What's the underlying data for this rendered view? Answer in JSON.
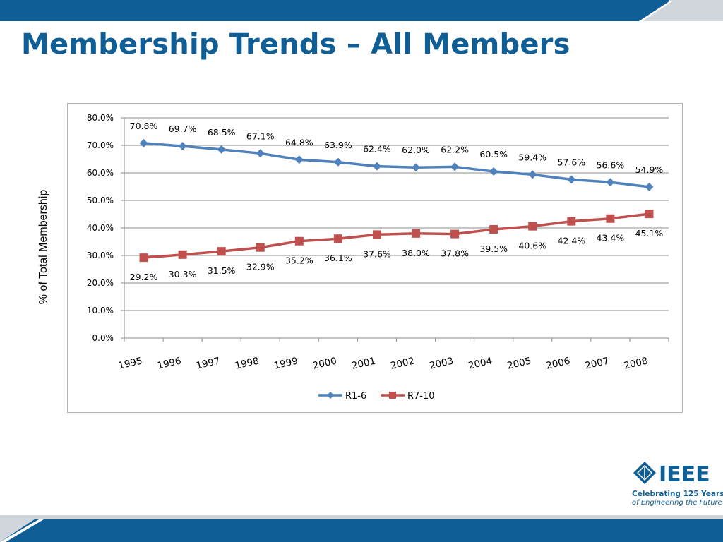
{
  "slide": {
    "title": "Membership Trends – All Members"
  },
  "logo": {
    "word": "IEEE",
    "tagline_1": "Celebrating 125 Years",
    "tagline_2": "of Engineering the Future"
  },
  "colors": {
    "brand_blue": "#0f5f96",
    "series_1": "#4f81bd",
    "series_2": "#c0504d",
    "bar_light": "#d0d6dc"
  },
  "chart_data": {
    "type": "line",
    "title": "",
    "xlabel": "",
    "ylabel": "% of Total Membership",
    "x": [
      "1995",
      "1996",
      "1997",
      "1998",
      "1999",
      "2000",
      "2001",
      "2002",
      "2003",
      "2004",
      "2005",
      "2006",
      "2007",
      "2008"
    ],
    "ylim": [
      0,
      80
    ],
    "y_ticks": [
      "0.0%",
      "10.0%",
      "20.0%",
      "30.0%",
      "40.0%",
      "50.0%",
      "60.0%",
      "70.0%",
      "80.0%"
    ],
    "y_tick_values": [
      0,
      10,
      20,
      30,
      40,
      50,
      60,
      70,
      80
    ],
    "grid": true,
    "legend_position": "bottom",
    "series": [
      {
        "name": "R1-6",
        "marker": "diamond",
        "color": "#4f81bd",
        "values": [
          70.8,
          69.7,
          68.5,
          67.1,
          64.8,
          63.9,
          62.4,
          62.0,
          62.2,
          60.5,
          59.4,
          57.6,
          56.6,
          54.9
        ],
        "labels": [
          "70.8%",
          "69.7%",
          "68.5%",
          "67.1%",
          "64.8%",
          "63.9%",
          "62.4%",
          "62.0%",
          "62.2%",
          "60.5%",
          "59.4%",
          "57.6%",
          "56.6%",
          "54.9%"
        ]
      },
      {
        "name": "R7-10",
        "marker": "square",
        "color": "#c0504d",
        "values": [
          29.2,
          30.3,
          31.5,
          32.9,
          35.2,
          36.1,
          37.6,
          38.0,
          37.8,
          39.5,
          40.6,
          42.4,
          43.4,
          45.1
        ],
        "labels": [
          "29.2%",
          "30.3%",
          "31.5%",
          "32.9%",
          "35.2%",
          "36.1%",
          "37.6%",
          "38.0%",
          "37.8%",
          "39.5%",
          "40.6%",
          "42.4%",
          "43.4%",
          "45.1%"
        ]
      }
    ]
  }
}
